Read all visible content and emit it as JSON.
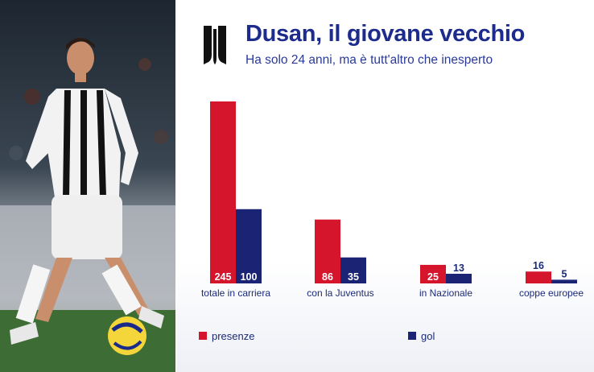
{
  "title": "Dusan, il giovane vecchio",
  "subtitle": "Ha solo 24 anni, ma è tutt'altro che inesperto",
  "colors": {
    "presenze": "#d4152c",
    "gol": "#1b2474",
    "text": "#1c2b8c"
  },
  "icons": {
    "logo": "juventus-logo-icon"
  },
  "chart_data": {
    "type": "bar",
    "title": "Dusan, il giovane vecchio",
    "subtitle": "Ha solo 24 anni, ma è tutt'altro che inesperto",
    "categories": [
      "totale in carriera",
      "con la Juventus",
      "in Nazionale",
      "coppe europee"
    ],
    "series": [
      {
        "name": "presenze",
        "values": [
          245,
          86,
          25,
          16
        ],
        "color": "#d4152c"
      },
      {
        "name": "gol",
        "values": [
          100,
          35,
          13,
          5
        ],
        "color": "#1b2474"
      }
    ],
    "ylim": [
      0,
      245
    ],
    "grid": false,
    "legend": "bottom-left",
    "data_labels": true
  }
}
